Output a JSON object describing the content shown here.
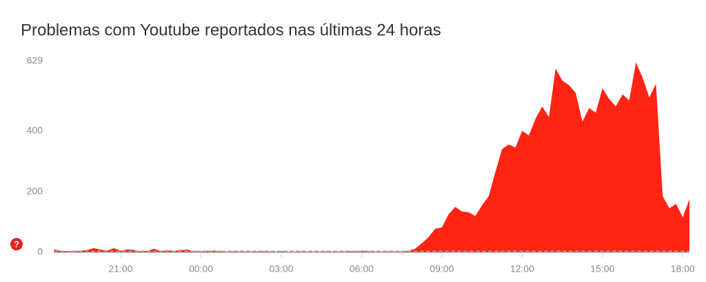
{
  "chart_data": {
    "type": "area",
    "title": "Problemas com Youtube reportados nas últimas 24 horas",
    "color": "#ff2414",
    "grid": false,
    "x": [
      18.5,
      18.75,
      19,
      19.25,
      19.5,
      19.75,
      20,
      20.25,
      20.5,
      20.75,
      21,
      21.25,
      21.5,
      21.75,
      22,
      22.25,
      22.5,
      22.75,
      23,
      23.25,
      23.5,
      23.75,
      24,
      24.25,
      24.5,
      24.75,
      25,
      25.25,
      25.5,
      25.75,
      26,
      26.25,
      26.5,
      26.75,
      27,
      27.25,
      27.5,
      27.75,
      28,
      28.25,
      28.5,
      28.75,
      29,
      29.25,
      29.5,
      29.75,
      30,
      30.25,
      30.5,
      30.75,
      31,
      31.25,
      31.5,
      31.75,
      32,
      32.25,
      32.5,
      32.75,
      33,
      33.25,
      33.5,
      33.75,
      34,
      34.25,
      34.5,
      34.75,
      35,
      35.25,
      35.5,
      35.75,
      36,
      36.25,
      36.5,
      36.75,
      37,
      37.25,
      37.5,
      37.75,
      38,
      38.25,
      38.5,
      38.75,
      39,
      39.25,
      39.5,
      39.75,
      40,
      40.25,
      40.5,
      40.75,
      41,
      41.25,
      41.5,
      41.75,
      42,
      42.25
    ],
    "values": [
      10,
      5,
      4,
      3,
      6,
      8,
      14,
      9,
      6,
      14,
      5,
      10,
      8,
      3,
      5,
      12,
      4,
      7,
      5,
      8,
      9,
      4,
      3,
      5,
      6,
      4,
      2,
      3,
      2,
      3,
      2,
      4,
      3,
      2,
      4,
      2,
      2,
      3,
      2,
      2,
      2,
      3,
      2,
      2,
      4,
      3,
      5,
      3,
      2,
      2,
      3,
      2,
      3,
      5,
      12,
      30,
      50,
      78,
      82,
      125,
      150,
      135,
      132,
      120,
      155,
      185,
      265,
      340,
      355,
      345,
      400,
      385,
      440,
      480,
      445,
      605,
      565,
      550,
      525,
      430,
      475,
      460,
      540,
      505,
      480,
      520,
      500,
      625,
      575,
      510,
      555,
      185,
      145,
      160,
      115,
      175
    ],
    "xlim": [
      18.5,
      42.25
    ],
    "xticks": [
      {
        "value": 21,
        "label": "21:00"
      },
      {
        "value": 24,
        "label": "00:00"
      },
      {
        "value": 27,
        "label": "03:00"
      },
      {
        "value": 30,
        "label": "06:00"
      },
      {
        "value": 33,
        "label": "09:00"
      },
      {
        "value": 36,
        "label": "12:00"
      },
      {
        "value": 39,
        "label": "15:00"
      },
      {
        "value": 42,
        "label": "18:00"
      }
    ],
    "ylim": [
      0,
      629
    ],
    "yticks": [
      0,
      200,
      400,
      629
    ]
  },
  "help_icon": "?"
}
